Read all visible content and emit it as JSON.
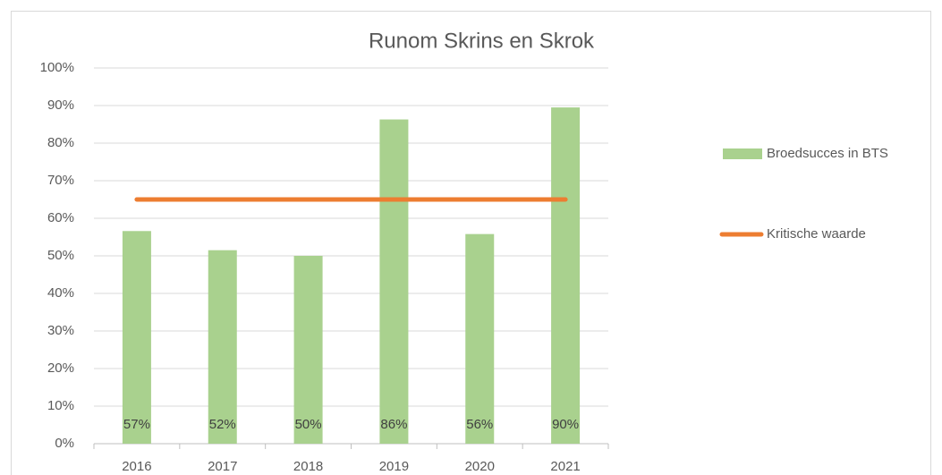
{
  "chart_data": {
    "type": "bar",
    "title": "Runom Skrins en Skrok",
    "categories": [
      "2016",
      "2017",
      "2018",
      "2019",
      "2020",
      "2021"
    ],
    "series": [
      {
        "name": "Broedsucces in BTS",
        "type": "bar",
        "color": "#a9d18e",
        "values": [
          56.6,
          51.5,
          50,
          86.3,
          55.8,
          89.5
        ],
        "value_labels": [
          "57%",
          "52%",
          "50%",
          "86%",
          "56%",
          "90%"
        ]
      },
      {
        "name": "Kritische waarde",
        "type": "line",
        "color": "#ed7d31",
        "values": [
          65,
          65,
          65,
          65,
          65,
          65
        ]
      }
    ],
    "ylim": [
      0,
      100
    ],
    "yticks": [
      {
        "value": 0,
        "label": "0%"
      },
      {
        "value": 10,
        "label": "10%"
      },
      {
        "value": 20,
        "label": "20%"
      },
      {
        "value": 30,
        "label": "30%"
      },
      {
        "value": 40,
        "label": "40%"
      },
      {
        "value": 50,
        "label": "50%"
      },
      {
        "value": 60,
        "label": "60%"
      },
      {
        "value": 70,
        "label": "70%"
      },
      {
        "value": 80,
        "label": "80%"
      },
      {
        "value": 90,
        "label": "90%"
      },
      {
        "value": 100,
        "label": "100%"
      }
    ],
    "grid": true,
    "legend": "right"
  }
}
